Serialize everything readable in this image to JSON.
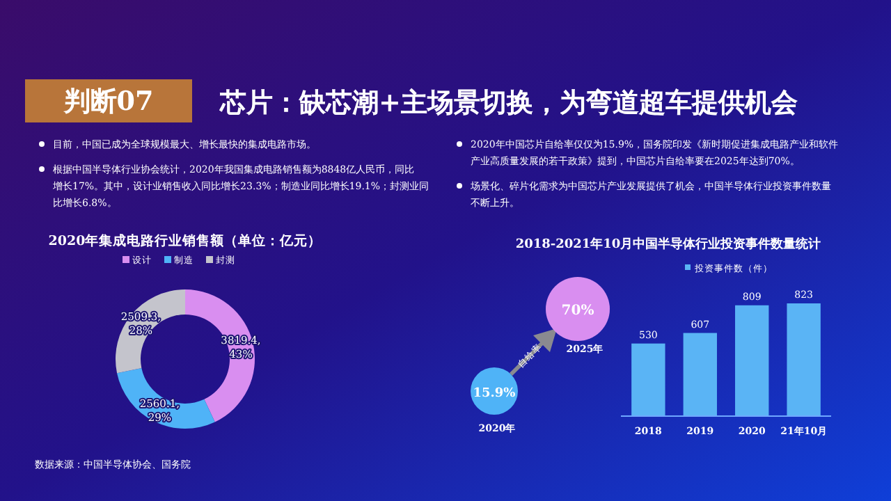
{
  "chart_data": [
    {
      "type": "other",
      "title": "判断07",
      "subtitle": "芯片：缺芯潮+主场景切换，为弯道超车提供机会",
      "annotations": [
        "目前，中国已成为全球规模最大、增长最快的集成电路市场。",
        "根据中国半导体行业协会统计，2020年我国集成电路销售额为8848亿人民币，同比增长17%。其中，设计业销售收入同比增长23.3%；制造业同比增长19.1%；封测业同比增长6.8%。",
        "2020年中国芯片自给率仅仅为15.9%，国务院印发《新时期促进集成电路产业和软件产业高质量发展的若干政策》提到，中国芯片自给率要在2025年达到70%。",
        "场景化、碎片化需求为中国芯片产业发展提供了机会，中国半导体行业投资事件数量不断上升。",
        "数据来源：中国半导体协会、国务院"
      ]
    },
    {
      "type": "donut",
      "title": "2020年集成电路行业销售额（单位：亿元）",
      "categories": [
        "设计",
        "制造",
        "封测"
      ],
      "values": [
        3819.4,
        2560.1,
        2509.3
      ],
      "colors": [
        "#d98ef0",
        "#4fb3f7",
        "#c4c4cc"
      ],
      "value_labels": [
        "3819.4,\n43%",
        "2560.1,\n29%",
        "2509.3,\n28%"
      ],
      "legend": "top"
    },
    {
      "type": "other",
      "categories": [
        "2020年",
        "2025年"
      ],
      "values": [
        15.9,
        70
      ],
      "value_labels": [
        "15.9%",
        "70%"
      ],
      "colors": [
        "#4fb3f7",
        "#d98ef0"
      ],
      "annotations": [
        "自给率"
      ]
    },
    {
      "type": "bar",
      "title": "2018-2021年10月中国半导体行业投资事件数量统计",
      "categories": [
        "2018",
        "2019",
        "2020",
        "21年10月"
      ],
      "series": [
        {
          "name": "投资事件数（件）",
          "color": "#5ab4f5",
          "values": [
            530,
            607,
            809,
            823
          ]
        }
      ],
      "data_labels": true,
      "legend": "top"
    }
  ]
}
